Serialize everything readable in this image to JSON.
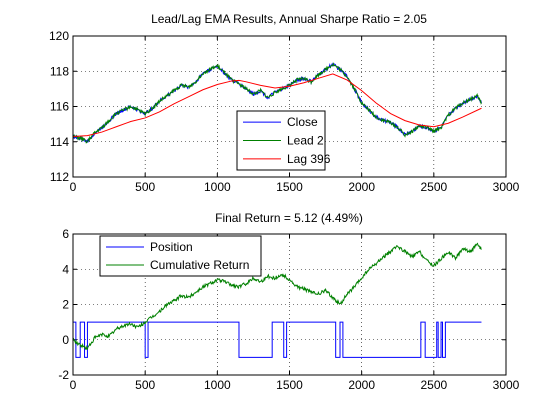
{
  "chart_data": [
    {
      "type": "line",
      "title": "Lead/Lag EMA Results, Annual Sharpe Ratio = 2.05",
      "xlim": [
        0,
        3000
      ],
      "ylim": [
        112,
        120
      ],
      "xticks": [
        "0",
        "500",
        "1000",
        "1500",
        "2000",
        "2500",
        "3000"
      ],
      "yticks": [
        "112",
        "114",
        "116",
        "118",
        "120"
      ],
      "grid": true,
      "legend_position": "lower-right",
      "series": [
        {
          "name": "Close",
          "color": "#0000ff",
          "x": [
            0,
            50,
            100,
            150,
            200,
            250,
            300,
            350,
            400,
            450,
            500,
            550,
            600,
            650,
            700,
            750,
            800,
            850,
            900,
            950,
            1000,
            1050,
            1100,
            1150,
            1200,
            1250,
            1300,
            1350,
            1400,
            1450,
            1500,
            1550,
            1600,
            1650,
            1700,
            1750,
            1800,
            1850,
            1900,
            1950,
            2000,
            2050,
            2100,
            2150,
            2200,
            2250,
            2300,
            2350,
            2400,
            2450,
            2500,
            2550,
            2600,
            2650,
            2700,
            2750,
            2800,
            2830
          ],
          "y": [
            114.3,
            114.2,
            114.0,
            114.5,
            114.8,
            115.2,
            115.6,
            115.8,
            116.0,
            115.8,
            115.6,
            115.9,
            116.3,
            116.6,
            116.9,
            117.2,
            117.1,
            117.4,
            117.9,
            118.1,
            118.3,
            117.9,
            117.5,
            117.3,
            117.0,
            116.7,
            116.9,
            116.5,
            116.8,
            117.0,
            117.2,
            117.5,
            117.6,
            117.4,
            117.8,
            118.1,
            118.4,
            118.1,
            117.7,
            117.0,
            116.2,
            115.8,
            115.4,
            115.2,
            115.1,
            114.8,
            114.4,
            114.6,
            114.9,
            114.8,
            114.6,
            114.8,
            115.5,
            115.9,
            116.2,
            116.4,
            116.6,
            116.2
          ]
        },
        {
          "name": "Lead 2",
          "color": "#008000",
          "x": [
            0,
            50,
            100,
            150,
            200,
            250,
            300,
            350,
            400,
            450,
            500,
            550,
            600,
            650,
            700,
            750,
            800,
            850,
            900,
            950,
            1000,
            1050,
            1100,
            1150,
            1200,
            1250,
            1300,
            1350,
            1400,
            1450,
            1500,
            1550,
            1600,
            1650,
            1700,
            1750,
            1800,
            1850,
            1900,
            1950,
            2000,
            2050,
            2100,
            2150,
            2200,
            2250,
            2300,
            2350,
            2400,
            2450,
            2500,
            2550,
            2600,
            2650,
            2700,
            2750,
            2800,
            2830
          ],
          "y": [
            114.3,
            114.2,
            114.0,
            114.5,
            114.8,
            115.2,
            115.6,
            115.8,
            116.0,
            115.8,
            115.6,
            115.9,
            116.3,
            116.6,
            116.9,
            117.2,
            117.1,
            117.4,
            117.9,
            118.1,
            118.3,
            117.9,
            117.5,
            117.3,
            117.0,
            116.7,
            116.9,
            116.5,
            116.8,
            117.0,
            117.2,
            117.5,
            117.6,
            117.4,
            117.8,
            118.1,
            118.4,
            118.1,
            117.7,
            117.0,
            116.2,
            115.8,
            115.4,
            115.2,
            115.1,
            114.8,
            114.4,
            114.6,
            114.9,
            114.8,
            114.6,
            114.8,
            115.5,
            115.9,
            116.2,
            116.4,
            116.6,
            116.2
          ]
        },
        {
          "name": "Lag 396",
          "color": "#ff0000",
          "x": [
            0,
            100,
            200,
            300,
            400,
            500,
            600,
            700,
            800,
            900,
            1000,
            1100,
            1150,
            1200,
            1300,
            1400,
            1500,
            1600,
            1700,
            1800,
            1900,
            2000,
            2100,
            2200,
            2300,
            2400,
            2500,
            2600,
            2700,
            2830
          ],
          "y": [
            114.3,
            114.35,
            114.55,
            114.85,
            115.15,
            115.35,
            115.7,
            116.15,
            116.55,
            116.95,
            117.25,
            117.45,
            117.48,
            117.4,
            117.2,
            117.05,
            117.15,
            117.35,
            117.6,
            117.85,
            117.5,
            116.9,
            116.2,
            115.6,
            115.2,
            114.95,
            114.85,
            115.05,
            115.4,
            115.9
          ]
        }
      ]
    },
    {
      "type": "line",
      "title": "Final Return = 5.12 (4.49%)",
      "xlim": [
        0,
        3000
      ],
      "ylim": [
        -2,
        6
      ],
      "xticks": [
        "0",
        "500",
        "1000",
        "1500",
        "2000",
        "2500",
        "3000"
      ],
      "yticks": [
        "-2",
        "0",
        "2",
        "4",
        "6"
      ],
      "grid": true,
      "legend_position": "upper-left",
      "series": [
        {
          "name": "Position",
          "color": "#0000ff",
          "step": true,
          "x": [
            0,
            20,
            50,
            80,
            100,
            130,
            500,
            520,
            540,
            1150,
            1380,
            1460,
            1480,
            1590,
            1820,
            1850,
            1870,
            2410,
            2440,
            2520,
            2530,
            2550,
            2560,
            2580,
            2590,
            2830
          ],
          "y": [
            1,
            -1,
            1,
            -1,
            1,
            1,
            -1,
            1,
            1,
            -1,
            1,
            -1,
            1,
            1,
            -1,
            1,
            -1,
            1,
            -1,
            1,
            -1,
            1,
            -1,
            1,
            1,
            1
          ]
        },
        {
          "name": "Cumulative Return",
          "color": "#008000",
          "x": [
            0,
            50,
            100,
            150,
            200,
            250,
            300,
            350,
            400,
            450,
            500,
            550,
            600,
            650,
            700,
            750,
            800,
            850,
            900,
            950,
            1000,
            1050,
            1100,
            1150,
            1200,
            1250,
            1300,
            1350,
            1400,
            1450,
            1500,
            1550,
            1600,
            1650,
            1700,
            1750,
            1800,
            1850,
            1900,
            1950,
            2000,
            2050,
            2100,
            2150,
            2200,
            2250,
            2300,
            2350,
            2400,
            2450,
            2500,
            2550,
            2600,
            2650,
            2700,
            2750,
            2800,
            2830
          ],
          "y": [
            0.0,
            -0.3,
            -0.5,
            0.1,
            0.3,
            0.2,
            0.6,
            0.8,
            0.9,
            0.7,
            1.0,
            1.3,
            1.6,
            2.0,
            2.2,
            2.5,
            2.4,
            2.7,
            3.0,
            3.2,
            3.4,
            3.3,
            3.1,
            3.0,
            3.2,
            3.5,
            3.3,
            3.6,
            3.5,
            3.7,
            3.4,
            3.0,
            2.9,
            2.7,
            2.6,
            2.8,
            2.4,
            2.0,
            2.6,
            3.0,
            3.5,
            4.0,
            4.3,
            4.7,
            5.0,
            5.3,
            5.0,
            4.7,
            5.0,
            4.5,
            4.2,
            4.6,
            5.0,
            4.6,
            5.2,
            5.0,
            5.4,
            5.12
          ]
        }
      ]
    }
  ]
}
